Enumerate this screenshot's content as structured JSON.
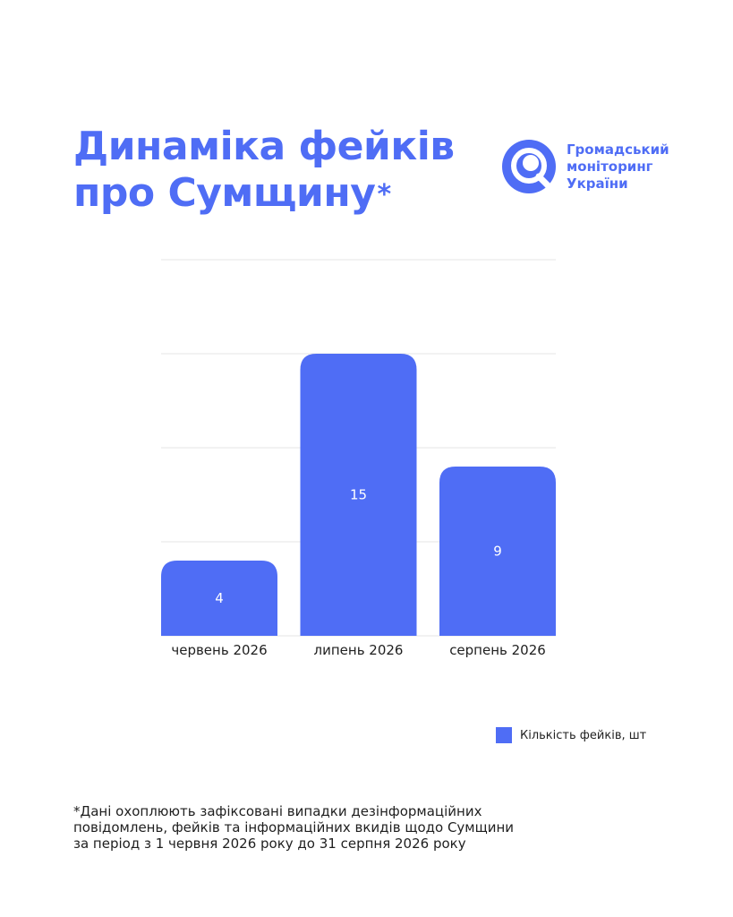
{
  "title": {
    "line1": "Динаміка фейків",
    "line2": "про Сумщину",
    "asterisk": "*"
  },
  "logo": {
    "icon": "magnifier-q-icon",
    "lines": [
      "Громадський",
      "моніторинг",
      "України"
    ],
    "color": "#4f6df5"
  },
  "colors": {
    "accent": "#4f6df5",
    "bar_label": "#ffffff",
    "grid": "#e6e6e6"
  },
  "chart_data": {
    "type": "bar",
    "title": "Динаміка фейків про Сумщину",
    "categories": [
      "червень 2026",
      "липень 2026",
      "серпень 2026"
    ],
    "series": [
      {
        "name": "Кількість фейків, шт",
        "values": [
          4,
          15,
          9
        ]
      }
    ],
    "ylim": [
      0,
      20
    ],
    "grid": true,
    "gridlines": [
      0,
      5,
      10,
      15,
      20
    ],
    "data_labels": true,
    "legend": "bottom-right"
  },
  "legend": {
    "label": "Кількість фейків, шт"
  },
  "footnote": {
    "lines": [
      "*Дані охоплюють зафіксовані випадки дезінформаційних",
      "повідомлень, фейків та інформаційних вкидів щодо Сумщини",
      "за період з 1 червня 2026 року до 31 серпня 2026 року"
    ]
  }
}
